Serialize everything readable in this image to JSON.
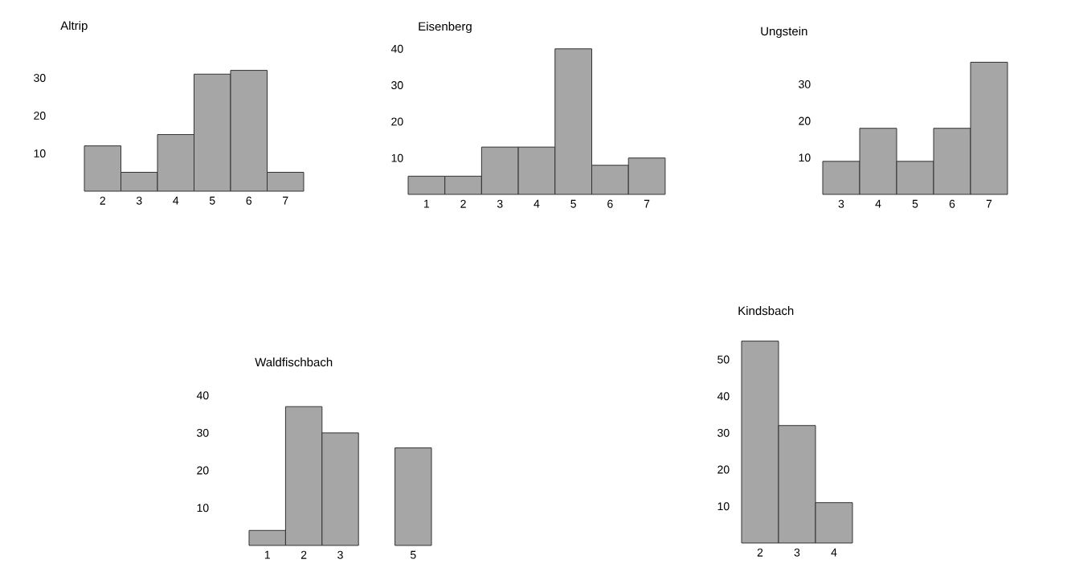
{
  "chart_data": [
    {
      "type": "bar",
      "title": "Altrip",
      "categories": [
        "2",
        "3",
        "4",
        "5",
        "6",
        "7"
      ],
      "values": [
        12,
        5,
        15,
        31,
        32,
        5
      ],
      "color": "#a6a6a6",
      "ylim": [
        0,
        32
      ],
      "yticks": [
        10,
        20,
        30
      ]
    },
    {
      "type": "bar",
      "title": "Eisenberg",
      "categories": [
        "1",
        "2",
        "3",
        "4",
        "5",
        "6",
        "7"
      ],
      "values": [
        5,
        5,
        13,
        13,
        40,
        8,
        10
      ],
      "color": "#a6a6a6",
      "ylim": [
        0,
        40
      ],
      "yticks": [
        10,
        20,
        30,
        40
      ]
    },
    {
      "type": "bar",
      "title": "Ungstein",
      "categories": [
        "3",
        "4",
        "5",
        "6",
        "7"
      ],
      "values": [
        9,
        18,
        9,
        18,
        36
      ],
      "color": "#a6a6a6",
      "ylim": [
        0,
        36
      ],
      "yticks": [
        10,
        20,
        30
      ]
    },
    {
      "type": "bar",
      "title": "Waldfischbach",
      "categories": [
        "1",
        "2",
        "3",
        null,
        "5"
      ],
      "values": [
        4,
        37,
        30,
        null,
        26
      ],
      "color": "#a6a6a6",
      "ylim": [
        0,
        40
      ],
      "yticks": [
        10,
        20,
        30,
        40
      ]
    },
    {
      "type": "bar",
      "title": "Kindsbach",
      "categories": [
        "2",
        "3",
        "4"
      ],
      "values": [
        55,
        32,
        11
      ],
      "color": "#a6a6a6",
      "ylim": [
        0,
        55
      ],
      "yticks": [
        10,
        20,
        30,
        40,
        50
      ]
    }
  ]
}
